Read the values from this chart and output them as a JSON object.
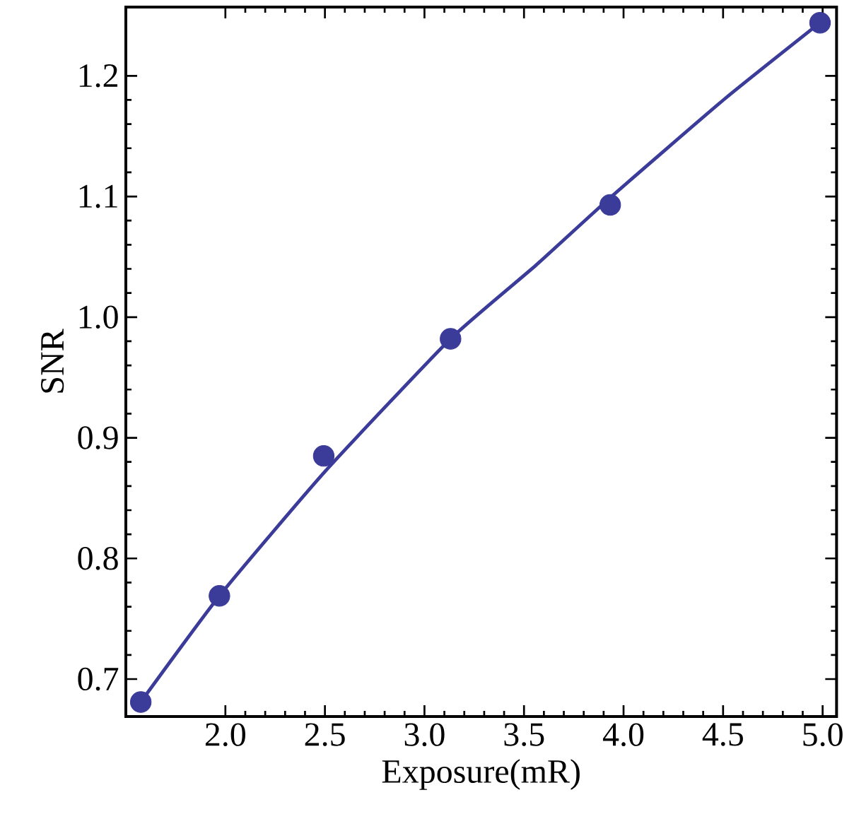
{
  "chart_data": {
    "type": "scatter",
    "xlabel": "Exposure(mR)",
    "ylabel": "SNR",
    "xlim": [
      1.5,
      5.07
    ],
    "xticks": [
      {
        "value": 2,
        "label": "2.0"
      },
      2.5,
      {
        "value": 3,
        "label": "3.0"
      },
      3.5,
      {
        "value": 4,
        "label": "4.0"
      },
      4.5,
      {
        "value": 5,
        "label": "5.0"
      }
    ],
    "ylim": [
      0.669,
      1.257
    ],
    "yticks": [
      0.7,
      0.8,
      0.9,
      {
        "value": 1,
        "label": "1.0"
      },
      1.1,
      1.2
    ],
    "grid": false,
    "series": [
      {
        "color": "#3b3b9a",
        "marker": "circle",
        "x": [
          1.575,
          1.97,
          2.494,
          3.131,
          3.933,
          4.987
        ],
        "values": [
          0.681,
          0.769,
          0.885,
          0.982,
          1.093,
          1.244
        ]
      },
      {
        "type": "line",
        "color": "#3b3b9a",
        "line_style": "solid",
        "marker": "none",
        "x": [
          1.575,
          1.97,
          2.5,
          3.131,
          3.56,
          3.933,
          4.509,
          4.987
        ],
        "values": [
          0.681,
          0.769,
          0.872,
          0.982,
          1.043,
          1.099,
          1.181,
          1.244
        ]
      }
    ]
  }
}
